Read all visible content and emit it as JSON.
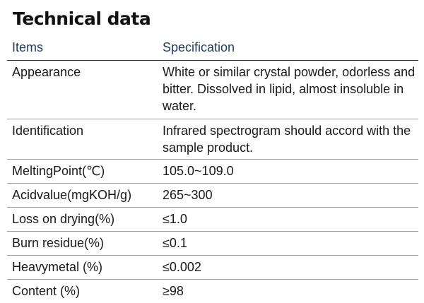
{
  "title": "Technical data",
  "table": {
    "headers": {
      "items": "Items",
      "specification": "Specification"
    },
    "rows": [
      {
        "item": "Appearance",
        "spec": "White or similar crystal powder, odorless and bitter. Dissolved in lipid, almost insoluble in water."
      },
      {
        "item": "Identification",
        "spec": "Infrared spectrogram should accord with the sample product."
      },
      {
        "item": "MeltingPoint(℃)",
        "spec": "105.0~109.0"
      },
      {
        "item": "Acidvalue(mgKOH/g)",
        "spec": "265~300"
      },
      {
        "item": "Loss on drying(%)",
        "spec": "≤1.0"
      },
      {
        "item": "Burn residue(%)",
        "spec": "≤0.1"
      },
      {
        "item": "Heavymetal (%)",
        "spec": "≤0.002"
      },
      {
        "item": "Content (%)",
        "spec": "≥98"
      }
    ]
  }
}
